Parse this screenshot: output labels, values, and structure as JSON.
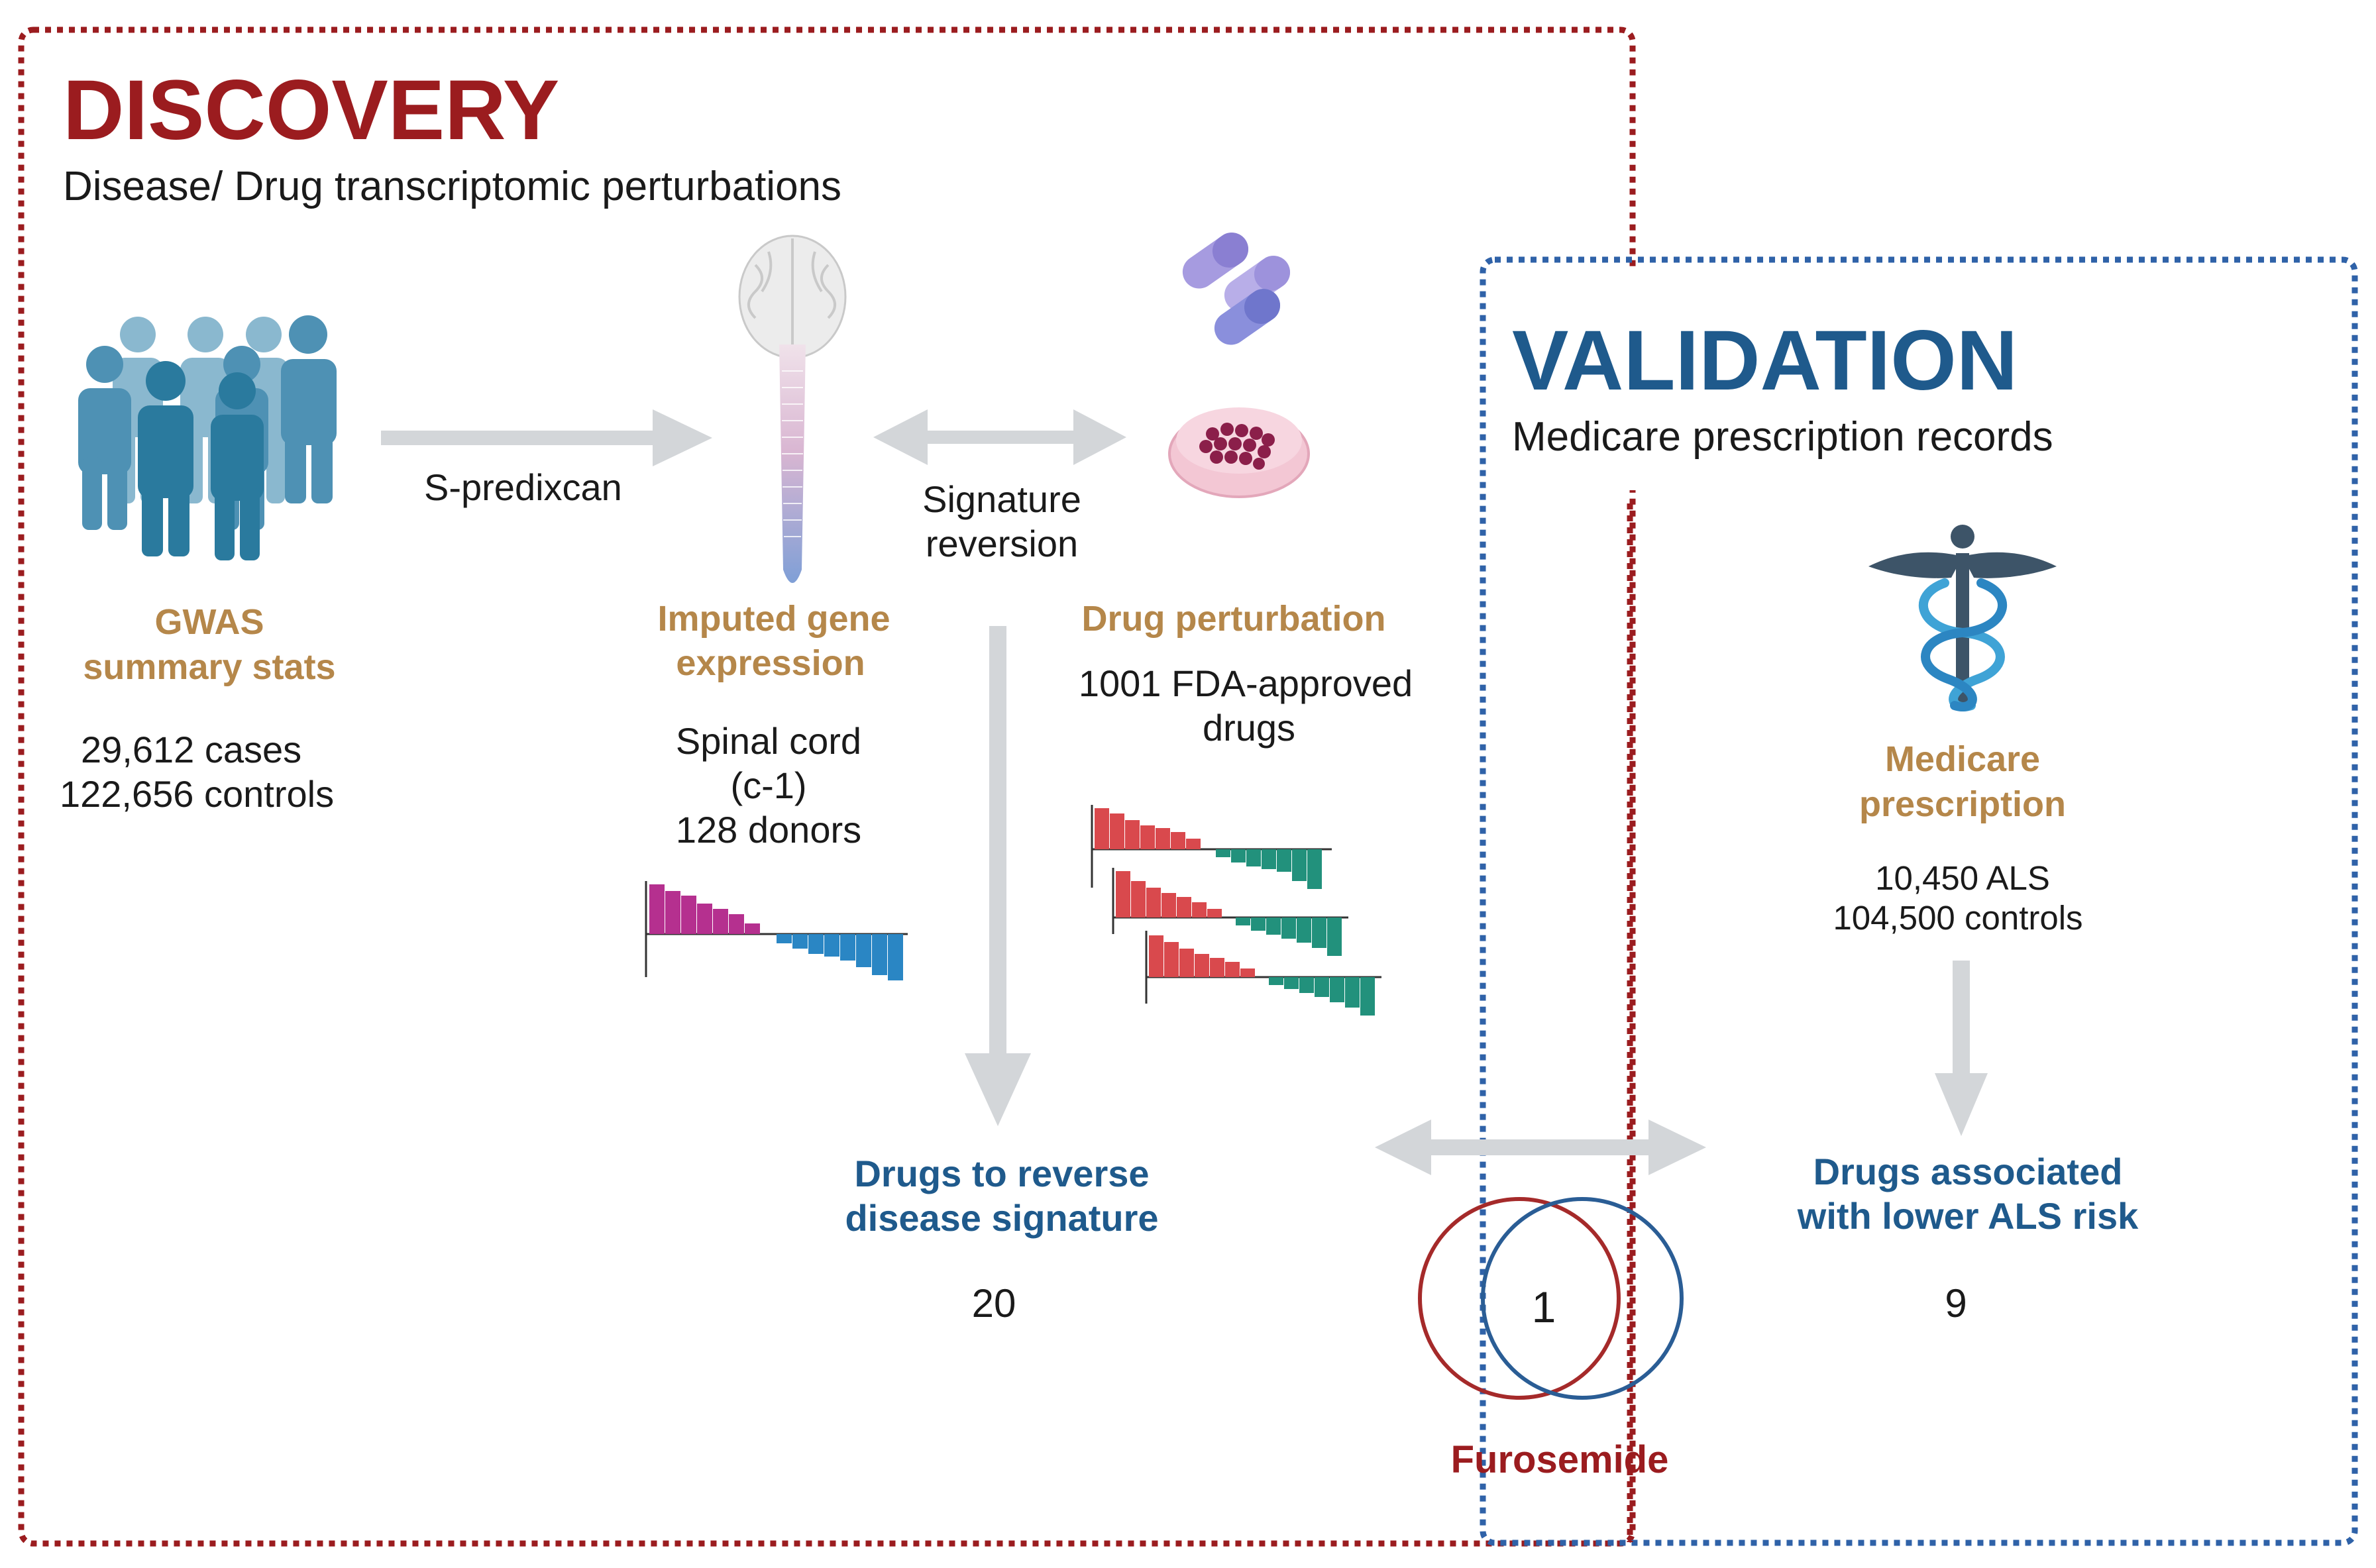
{
  "discovery": {
    "title": "DISCOVERY",
    "subtitle": "Disease/ Drug transcriptomic perturbations",
    "color": "#9b1c1f"
  },
  "validation": {
    "title": "VALIDATION",
    "subtitle": "Medicare prescription records",
    "color": "#1f5a8c"
  },
  "gwas": {
    "label_line1": "GWAS",
    "label_line2": "summary stats",
    "cases": "29,612 cases",
    "controls": "122,656 controls",
    "icon": "people-group-icon"
  },
  "arrow_spredixcan": {
    "label": "S-predixcan"
  },
  "imputed": {
    "label_line1": "Imputed gene",
    "label_line2": "expression",
    "tissue_line1": "Spinal cord",
    "tissue_line2": "(c-1)",
    "donors": "128 donors",
    "icon": "brain-spinal-cord-icon"
  },
  "signature_reversion": {
    "line1": "Signature",
    "line2": "reversion"
  },
  "drug_perturbation": {
    "label": "Drug perturbation",
    "count_line1": "1001 FDA-approved",
    "count_line2": "drugs",
    "icons": [
      "capsules-icon",
      "petri-dish-icon"
    ]
  },
  "reverse": {
    "label_line1": "Drugs to reverse",
    "label_line2": "disease signature",
    "count": "20"
  },
  "medicare": {
    "label_line1": "Medicare",
    "label_line2": "prescription",
    "als": "10,450  ALS",
    "controls": "104,500 controls",
    "icon": "caduceus-icon"
  },
  "lower_risk": {
    "label_line1": "Drugs associated",
    "label_line2": "with lower ALS risk",
    "count": "9"
  },
  "overlap": {
    "count": "1",
    "drug": "Furosemide"
  },
  "colors": {
    "arrow": "#d3d6d9",
    "gold": "#b5874a",
    "blue_text": "#1f5a8c",
    "red_border": "#9b1c1f",
    "blue_border": "#2f62a8",
    "bar_magenta": "#b5308f",
    "bar_blue": "#2a86c4",
    "bar_red": "#d9494d",
    "bar_teal": "#22917c",
    "venn_red": "#a52a2a",
    "venn_blue": "#2a5d95"
  }
}
